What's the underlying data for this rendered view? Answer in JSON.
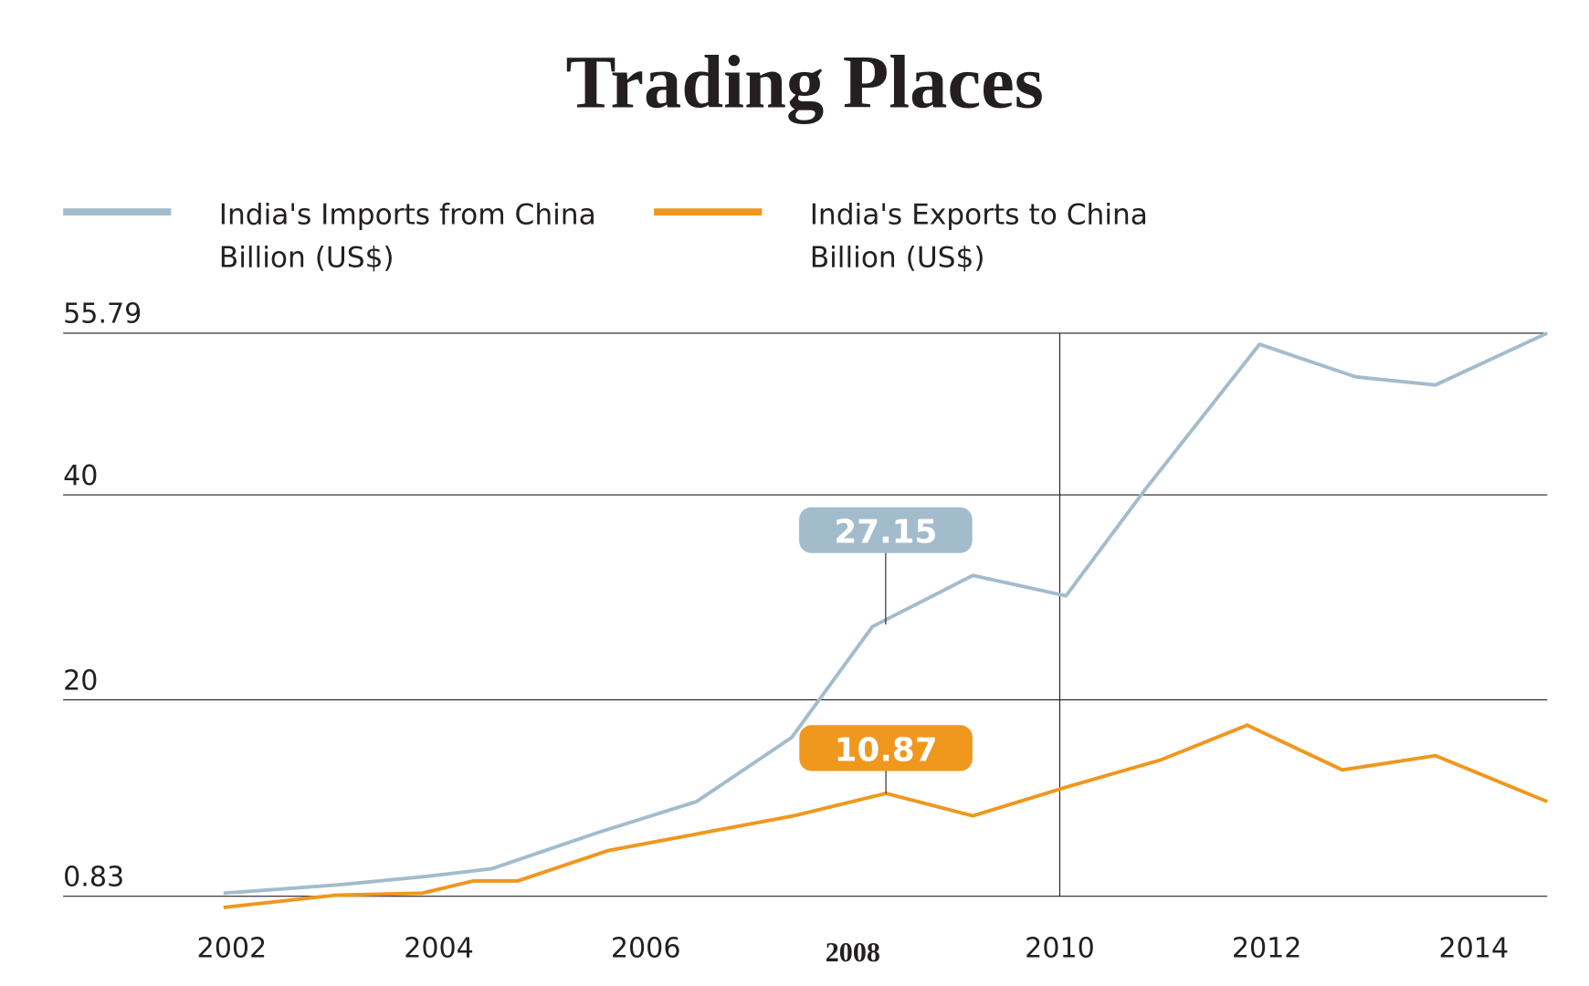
{
  "chart_data": {
    "type": "line",
    "title": "Trading Places",
    "xlim": [
      2000.37,
      2014.71
    ],
    "xticks": [
      2002,
      2004,
      2006,
      2008,
      2010,
      2012,
      2014
    ],
    "bold_xtick": 2008,
    "vline": 2010,
    "ylim": [
      0.83,
      55.79
    ],
    "yticks": [
      0.83,
      20,
      40,
      55.79
    ],
    "grid": true,
    "legend": "top-left",
    "series": [
      {
        "name": "India's Imports from China",
        "unit_label": "Billion (US$)",
        "color": "#a3bccc",
        "x": [
          2001.92,
          2003.0,
          2003.84,
          2004.51,
          2005.52,
          2006.49,
          2007.41,
          2008.19,
          2009.16,
          2010.06,
          2010.83,
          2011.93,
          2012.86,
          2013.63,
          2014.71
        ],
        "values": [
          1.13,
          1.92,
          2.72,
          3.51,
          6.99,
          10.07,
          16.33,
          27.15,
          32.14,
          30.15,
          40.59,
          54.7,
          51.52,
          50.73,
          55.79
        ],
        "value_labels": [
          null,
          null,
          null,
          null,
          null,
          null,
          null,
          "27.15",
          null,
          null,
          null,
          null,
          null,
          null,
          null
        ]
      },
      {
        "name": "India's Exports to China",
        "unit_label": "Billion (US$)",
        "color": "#f0971e",
        "x": [
          2001.92,
          2003.0,
          2003.84,
          2004.33,
          2004.76,
          2005.64,
          2007.43,
          2008.32,
          2009.16,
          2010.06,
          2010.98,
          2011.81,
          2012.73,
          2013.63,
          2014.71
        ],
        "values": [
          -0.26,
          0.93,
          1.13,
          2.32,
          2.32,
          5.3,
          8.68,
          10.87,
          8.68,
          11.47,
          14.15,
          17.53,
          13.16,
          14.55,
          10.07
        ],
        "value_labels": [
          null,
          null,
          null,
          null,
          null,
          null,
          null,
          "10.87",
          null,
          null,
          null,
          null,
          null,
          null,
          null
        ]
      }
    ]
  }
}
